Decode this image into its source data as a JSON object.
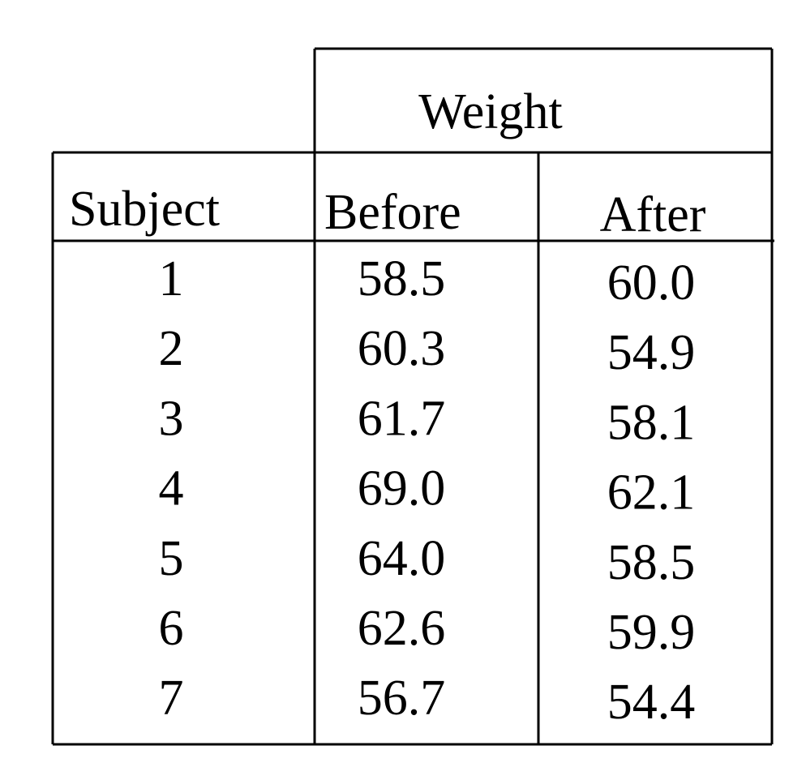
{
  "table": {
    "group_header": "Weight",
    "columns": [
      "Subject",
      "Before",
      "After"
    ],
    "rows": [
      [
        "1",
        "58.5",
        "60.0"
      ],
      [
        "2",
        "60.3",
        "54.9"
      ],
      [
        "3",
        "61.7",
        "58.1"
      ],
      [
        "4",
        "69.0",
        "62.1"
      ],
      [
        "5",
        "64.0",
        "58.5"
      ],
      [
        "6",
        "62.6",
        "59.9"
      ],
      [
        "7",
        "56.7",
        "54.4"
      ]
    ]
  }
}
